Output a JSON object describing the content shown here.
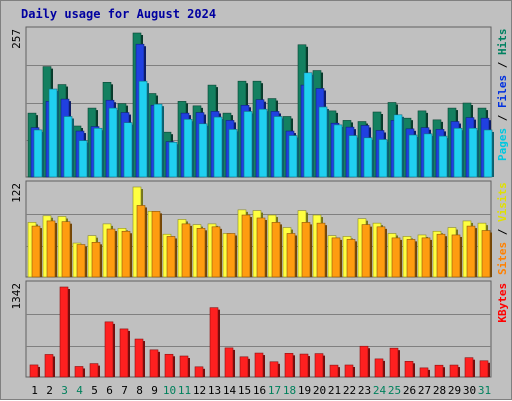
{
  "chart_data": {
    "type": "bar",
    "title": "Daily usage for August 2024",
    "title_color": "#0000a0",
    "categories": [
      "1",
      "2",
      "3",
      "4",
      "5",
      "6",
      "7",
      "8",
      "9",
      "10",
      "11",
      "12",
      "13",
      "14",
      "15",
      "16",
      "17",
      "18",
      "19",
      "20",
      "21",
      "22",
      "23",
      "24",
      "25",
      "26",
      "27",
      "28",
      "29",
      "30",
      "31"
    ],
    "weekend_days": [
      "3",
      "4",
      "10",
      "11",
      "17",
      "18",
      "24",
      "25",
      "31"
    ],
    "weekend_label_color": "#00805c",
    "weekday_label_color": "#000000",
    "panels": [
      {
        "name": "hits_files_pages",
        "y_tick_label": "257",
        "ylim": [
          0,
          257
        ],
        "legend": [
          {
            "text": "Pages",
            "color": "#00c8e0"
          },
          {
            "text": " / ",
            "color": "#000000"
          },
          {
            "text": "Files",
            "color": "#0030e0"
          },
          {
            "text": " / ",
            "color": "#000000"
          },
          {
            "text": "Hits",
            "color": "#008060"
          }
        ],
        "series": [
          {
            "name": "Hits",
            "color": "#148060",
            "values": [
              114,
              197,
              165,
              91,
              123,
              169,
              131,
              257,
              149,
              80,
              135,
              127,
              164,
              114,
              171,
              171,
              140,
              108,
              236,
              190,
              118,
              101,
              99,
              116,
              133,
              105,
              118,
              102,
              123,
              132,
              123
            ]
          },
          {
            "name": "Files",
            "color": "#2040e0",
            "values": [
              88,
              135,
              139,
              82,
              90,
              137,
              115,
              237,
              128,
              63,
              114,
              115,
              117,
              101,
              128,
              138,
              117,
              82,
              164,
              158,
              96,
              89,
              92,
              83,
              101,
              86,
              88,
              85,
              99,
              106,
              105
            ]
          },
          {
            "name": "Pages",
            "color": "#20d0f0",
            "values": [
              84,
              157,
              108,
              65,
              87,
              123,
              97,
              171,
              130,
              62,
              103,
              95,
              107,
              85,
              117,
              121,
              108,
              74,
              186,
              125,
              93,
              74,
              70,
              67,
              111,
              75,
              77,
              73,
              87,
              87,
              84
            ]
          }
        ]
      },
      {
        "name": "visits_sites",
        "y_tick_label": "122",
        "ylim": [
          0,
          122
        ],
        "legend": [
          {
            "text": "Sites",
            "color": "#ff8000"
          },
          {
            "text": " / ",
            "color": "#000000"
          },
          {
            "text": "Visits",
            "color": "#e0e000"
          }
        ],
        "series": [
          {
            "name": "Visits",
            "color": "#ffff40",
            "values": [
              74,
              83,
              82,
              46,
              56,
              72,
              66,
              122,
              89,
              58,
              78,
              71,
              72,
              59,
              91,
              90,
              84,
              67,
              90,
              84,
              56,
              55,
              79,
              73,
              59,
              55,
              57,
              62,
              67,
              76,
              73
            ]
          },
          {
            "name": "Sites",
            "color": "#ff9c10",
            "values": [
              69,
              76,
              75,
              44,
              47,
              65,
              62,
              97,
              89,
              55,
              72,
              66,
              68,
              59,
              84,
              80,
              74,
              59,
              74,
              73,
              53,
              51,
              71,
              68,
              53,
              51,
              53,
              58,
              57,
              69,
              63
            ]
          }
        ]
      },
      {
        "name": "kbytes",
        "y_tick_label": "1342",
        "ylim": [
          0,
          1342
        ],
        "legend": [
          {
            "text": "KBytes",
            "color": "#ff0000"
          }
        ],
        "series": [
          {
            "name": "KBytes",
            "color": "#ff2020",
            "values": [
              180,
              336,
              1342,
              157,
              200,
              822,
              717,
              566,
              405,
              339,
              313,
              152,
              1034,
              434,
              301,
              357,
              227,
              353,
              342,
              349,
              177,
              179,
              459,
              270,
              430,
              234,
              136,
              176,
              178,
              288,
              242
            ]
          }
        ]
      }
    ],
    "axis_color": "#606060",
    "gridline_color": "#808080",
    "panel_background": "#c0c0c0"
  }
}
